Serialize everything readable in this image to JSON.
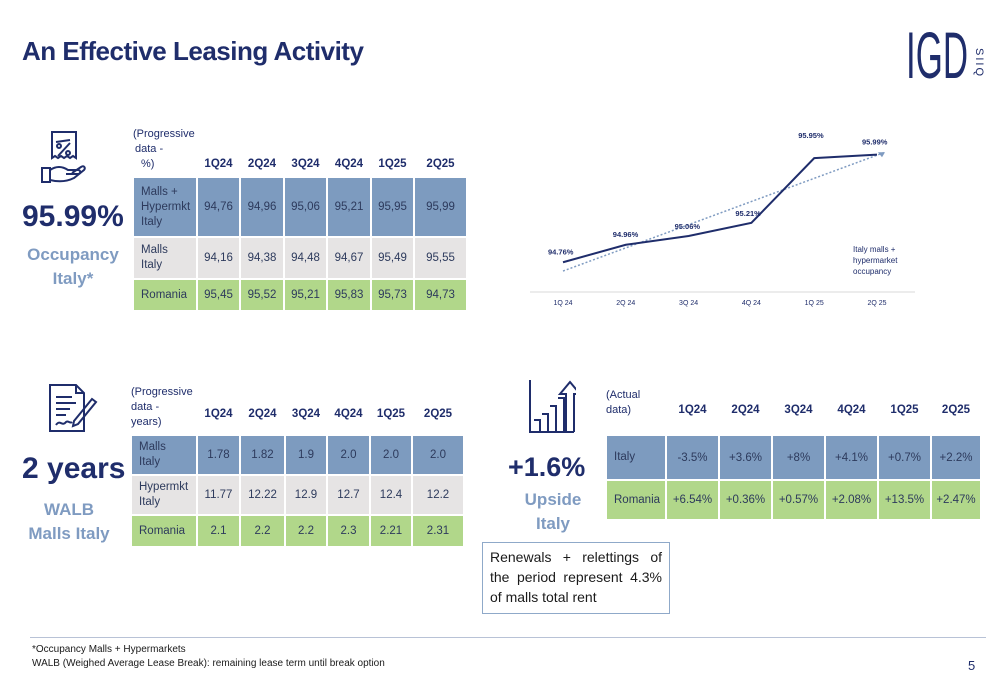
{
  "page": {
    "title": "An Effective Leasing Activity",
    "page_number": "5",
    "footnote_1": "*Occupancy Malls + Hypermarkets",
    "footnote_2": "WALB (Weighed Average Lease Break): remaining lease term until break option",
    "note": "Renewals + relettings of the period represent 4.3% of malls total rent"
  },
  "logo": {
    "letters": "IGD",
    "vertical": "SIIQ"
  },
  "occupancy": {
    "big_value": "95.99%",
    "label_line1": "Occupancy",
    "label_line2": "Italy*",
    "header_label": [
      "(Progressive",
      "data -",
      "%)"
    ],
    "columns": [
      "1Q24",
      "2Q24",
      "3Q24",
      "4Q24",
      "1Q25",
      "2Q25"
    ],
    "rows": [
      {
        "label": [
          "Malls +",
          "Hypermkt",
          "Italy"
        ],
        "values": [
          "94,76",
          "94,96",
          "95,06",
          "95,21",
          "95,95",
          "95,99"
        ]
      },
      {
        "label": [
          "Malls",
          "Italy"
        ],
        "values": [
          "94,16",
          "94,38",
          "94,48",
          "94,67",
          "95,49",
          "95,55"
        ]
      },
      {
        "label": [
          "Romania"
        ],
        "values": [
          "95,45",
          "95,52",
          "95,21",
          "95,83",
          "95,73",
          "94,73"
        ]
      }
    ]
  },
  "walb": {
    "big_value": "2 years",
    "label_line1": "WALB",
    "label_line2": "Malls Italy",
    "header_label": [
      "(Progressive",
      "data -",
      "years)"
    ],
    "columns": [
      "1Q24",
      "2Q24",
      "3Q24",
      "4Q24",
      "1Q25",
      "2Q25"
    ],
    "rows": [
      {
        "label": [
          "Malls",
          "Italy"
        ],
        "values": [
          "1.78",
          "1.82",
          "1.9",
          "2.0",
          "2.0",
          "2.0"
        ]
      },
      {
        "label": [
          "Hypermkt",
          "Italy"
        ],
        "values": [
          "11.77",
          "12.22",
          "12.9",
          "12.7",
          "12.4",
          "12.2"
        ]
      },
      {
        "label": [
          "Romania"
        ],
        "values": [
          "2.1",
          "2.2",
          "2.2",
          "2.3",
          "2.21",
          "2.31"
        ]
      }
    ]
  },
  "upside": {
    "big_value": "+1.6%",
    "label_line1": "Upside",
    "label_line2": "Italy",
    "header_label": [
      "(Actual",
      "data)"
    ],
    "columns": [
      "1Q24",
      "2Q24",
      "3Q24",
      "4Q24",
      "1Q25",
      "2Q25"
    ],
    "rows": [
      {
        "label": [
          "Italy"
        ],
        "values": [
          "-3.5%",
          "+3.6%",
          "+8%",
          "+4.1%",
          "+0.7%",
          "+2.2%"
        ]
      },
      {
        "label": [
          "Romania"
        ],
        "values": [
          "+6.54%",
          "+0.36%",
          "+0.57%",
          "+2.08%",
          "+13.5%",
          "+2.47%"
        ]
      }
    ]
  },
  "chart_data": {
    "type": "line",
    "categories": [
      "1Q 24",
      "2Q 24",
      "3Q 24",
      "4Q 24",
      "1Q 25",
      "2Q 25"
    ],
    "series": [
      {
        "name": "Italy malls + hypermarket occupancy",
        "values": [
          94.76,
          94.96,
          95.06,
          95.21,
          95.95,
          95.99
        ],
        "labels": [
          "94.76%",
          "94.96%",
          "95.06%",
          "95.21%",
          "95.95%",
          "95.99%"
        ],
        "color": "#1f2d6b"
      }
    ],
    "trendline": {
      "style": "dotted",
      "color": "#7f9bc1"
    },
    "legend_lines": [
      "Italy malls +",
      "hypermarket",
      "occupancy"
    ],
    "ylim": [
      94.5,
      96.1
    ],
    "grid": false
  },
  "colors": {
    "navy": "#1f2d6b",
    "light_blue": "#7f9bc1",
    "row_blue": "#7d9bbf",
    "row_grey": "#e6e4e4",
    "row_green": "#b1d78a"
  }
}
